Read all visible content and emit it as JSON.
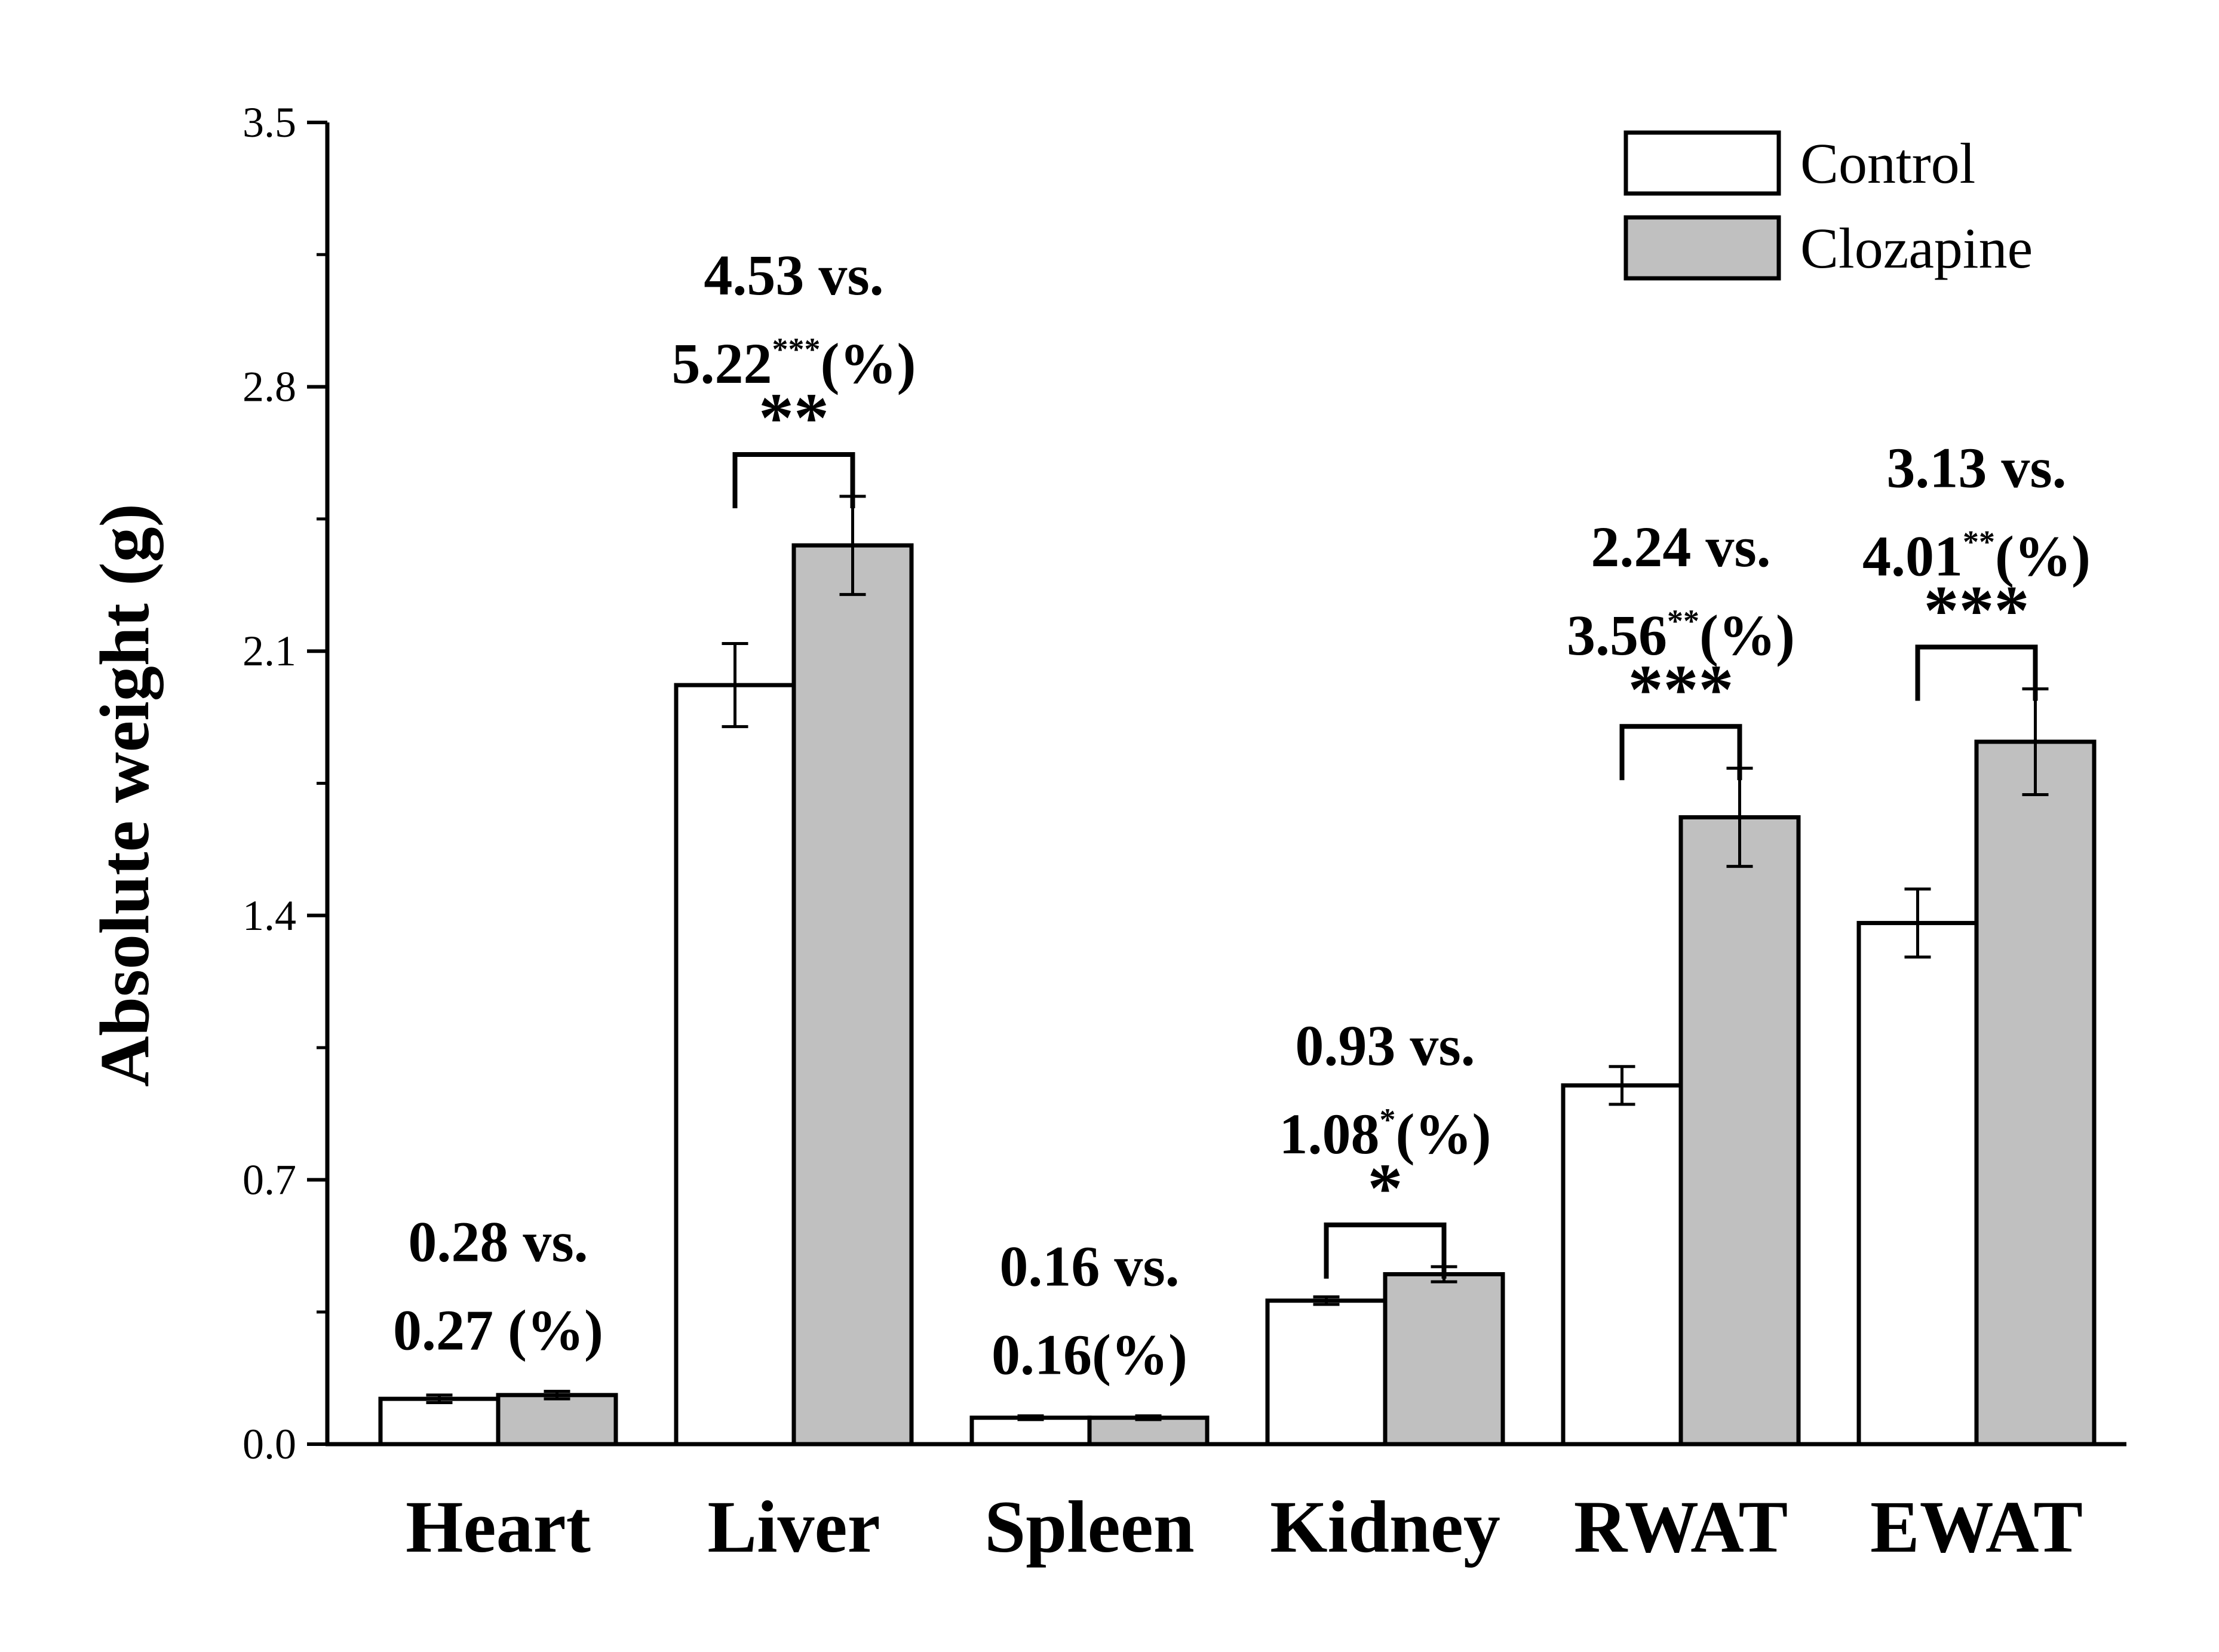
{
  "chart_data": {
    "type": "bar",
    "title": "",
    "xlabel": "",
    "ylabel": "Absolute weight (g)",
    "ylim": [
      0,
      3.5
    ],
    "yticks": [
      "0.0",
      "0.7",
      "1.4",
      "2.1",
      "2.8",
      "3.5"
    ],
    "categories": [
      "Heart",
      "Liver",
      "Spleen",
      "Kidney",
      "RWAT",
      "EWAT"
    ],
    "series": [
      {
        "name": "Control",
        "color": "#ffffff",
        "values": [
          0.12,
          2.01,
          0.07,
          0.38,
          0.95,
          1.38
        ],
        "errors": [
          0.01,
          0.11,
          0.005,
          0.01,
          0.05,
          0.09
        ]
      },
      {
        "name": "Clozapine",
        "color": "#c0c0c0",
        "values": [
          0.13,
          2.38,
          0.07,
          0.45,
          1.66,
          1.86
        ],
        "errors": [
          0.01,
          0.13,
          0.005,
          0.02,
          0.13,
          0.14
        ]
      }
    ],
    "annotations": [
      {
        "line1": "0.28 vs.",
        "line2_main": "0.27 (%)",
        "line2_sup": "",
        "line2_tail": "",
        "sig": ""
      },
      {
        "line1": "4.53 vs.",
        "line2_main": "5.22",
        "line2_sup": "***",
        "line2_tail": "(%)",
        "sig": "**"
      },
      {
        "line1": "0.16 vs.",
        "line2_main": "0.16(%)",
        "line2_sup": "",
        "line2_tail": "",
        "sig": ""
      },
      {
        "line1": "0.93 vs.",
        "line2_main": "1.08",
        "line2_sup": "*",
        "line2_tail": "(%)",
        "sig": "*"
      },
      {
        "line1": "2.24 vs.",
        "line2_main": "3.56",
        "line2_sup": "**",
        "line2_tail": "(%)",
        "sig": "***"
      },
      {
        "line1": "3.13 vs.",
        "line2_main": "4.01",
        "line2_sup": "**",
        "line2_tail": "(%)",
        "sig": "***"
      }
    ],
    "legend": {
      "position": "top-right",
      "labels": [
        "Control",
        "Clozapine"
      ]
    }
  }
}
